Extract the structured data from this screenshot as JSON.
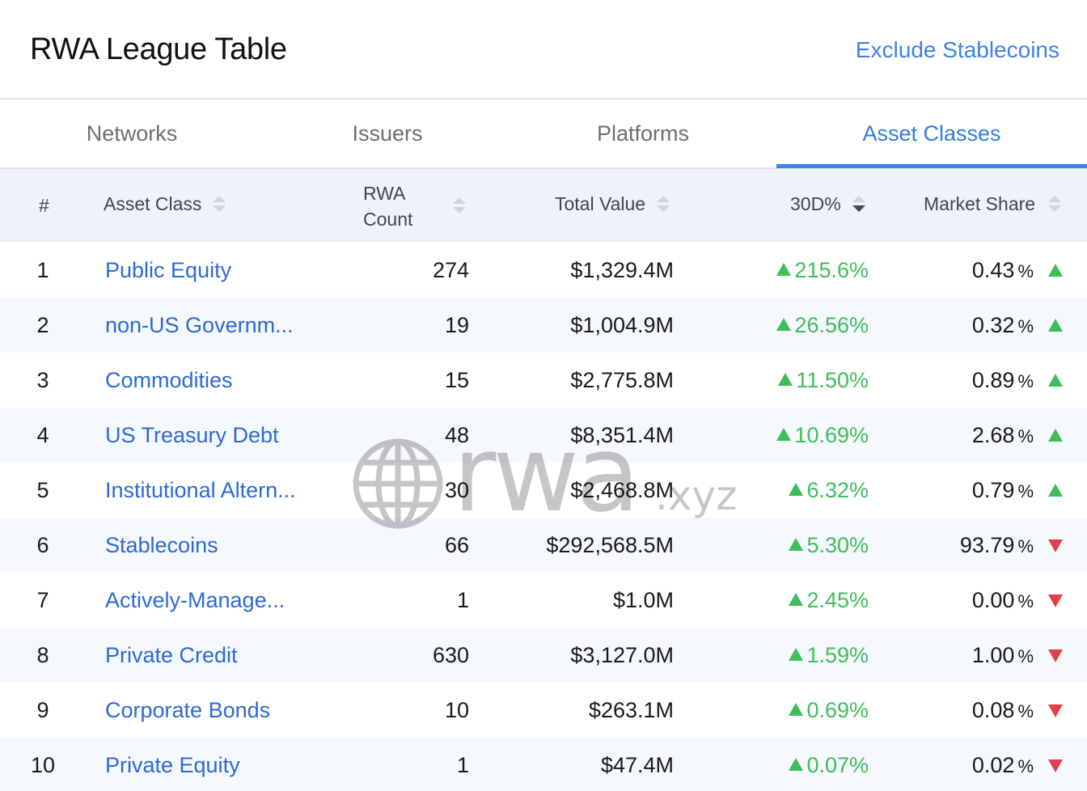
{
  "header": {
    "title": "RWA League Table",
    "exclude_label": "Exclude Stablecoins"
  },
  "tabs": [
    {
      "label": "Networks",
      "active": false
    },
    {
      "label": "Issuers",
      "active": false
    },
    {
      "label": "Platforms",
      "active": false
    },
    {
      "label": "Asset Classes",
      "active": true
    }
  ],
  "columns": {
    "rank": "#",
    "asset_class": "Asset Class",
    "rwa_count_line1": "RWA",
    "rwa_count_line2": "Count",
    "total_value": "Total Value",
    "change_30d": "30D%",
    "market_share": "Market Share"
  },
  "sort": {
    "column": "30D%",
    "direction": "descending"
  },
  "watermark": {
    "text": "rwa",
    "ext": ".xyz",
    "icon": "globe-icon"
  },
  "colors": {
    "accent": "#2f7de1",
    "link": "#2d69d6",
    "positive": "#3fbd5b",
    "negative": "#e0414b",
    "header_bg": "#eef3fa"
  },
  "rows": [
    {
      "rank": "1",
      "name": "Public Equity",
      "count": "274",
      "value": "$1,329.4M",
      "change": "215.6%",
      "share": "0.43",
      "share_unit": "%",
      "trend": "up"
    },
    {
      "rank": "2",
      "name": "non-US Governm...",
      "count": "19",
      "value": "$1,004.9M",
      "change": "26.56%",
      "share": "0.32",
      "share_unit": "%",
      "trend": "up"
    },
    {
      "rank": "3",
      "name": "Commodities",
      "count": "15",
      "value": "$2,775.8M",
      "change": "11.50%",
      "share": "0.89",
      "share_unit": "%",
      "trend": "up"
    },
    {
      "rank": "4",
      "name": "US Treasury Debt",
      "count": "48",
      "value": "$8,351.4M",
      "change": "10.69%",
      "share": "2.68",
      "share_unit": "%",
      "trend": "up"
    },
    {
      "rank": "5",
      "name": "Institutional Altern...",
      "count": "30",
      "value": "$2,468.8M",
      "change": "6.32%",
      "share": "0.79",
      "share_unit": "%",
      "trend": "up"
    },
    {
      "rank": "6",
      "name": "Stablecoins",
      "count": "66",
      "value": "$292,568.5M",
      "change": "5.30%",
      "share": "93.79",
      "share_unit": "%",
      "trend": "down"
    },
    {
      "rank": "7",
      "name": "Actively-Manage...",
      "count": "1",
      "value": "$1.0M",
      "change": "2.45%",
      "share": "0.00",
      "share_unit": "%",
      "trend": "down"
    },
    {
      "rank": "8",
      "name": "Private Credit",
      "count": "630",
      "value": "$3,127.0M",
      "change": "1.59%",
      "share": "1.00",
      "share_unit": "%",
      "trend": "down"
    },
    {
      "rank": "9",
      "name": "Corporate Bonds",
      "count": "10",
      "value": "$263.1M",
      "change": "0.69%",
      "share": "0.08",
      "share_unit": "%",
      "trend": "down"
    },
    {
      "rank": "10",
      "name": "Private Equity",
      "count": "1",
      "value": "$47.4M",
      "change": "0.07%",
      "share": "0.02",
      "share_unit": "%",
      "trend": "down"
    }
  ]
}
